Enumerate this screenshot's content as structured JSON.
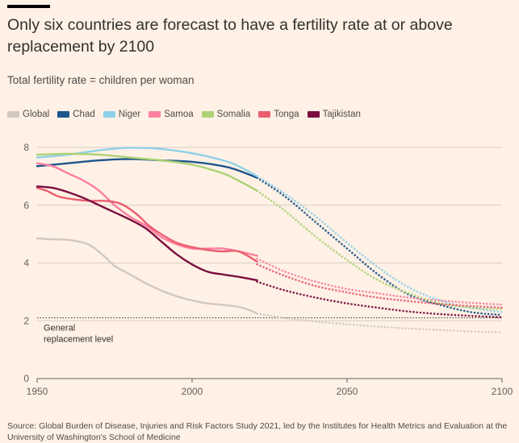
{
  "title": "Only six countries are forecast to have a fertility rate at or above replacement by 2100",
  "subtitle": "Total fertility rate = children per woman",
  "source": "Source: Global Burden of Disease, Injuries and Risk Factors Study 2021, led by the Institutes for Health Metrics and Evaluation at the University of Washington's School of Medicine",
  "chart_data": {
    "type": "line",
    "xlim": [
      1950,
      2100
    ],
    "ylim": [
      0,
      8
    ],
    "x_ticks": [
      1950,
      2000,
      2050,
      2100
    ],
    "y_ticks": [
      0,
      2,
      4,
      6,
      8
    ],
    "grid": true,
    "legend_placement": "top-left",
    "projection_start": 2021,
    "reference_line": {
      "value": 2.1,
      "label_line1": "General",
      "label_line2": "replacement level"
    },
    "series": [
      {
        "name": "Global",
        "color": "#d2c8c2",
        "points": [
          [
            1950,
            4.85
          ],
          [
            1955,
            4.82
          ],
          [
            1960,
            4.8
          ],
          [
            1965,
            4.7
          ],
          [
            1968,
            4.55
          ],
          [
            1972,
            4.2
          ],
          [
            1975,
            3.9
          ],
          [
            1980,
            3.6
          ],
          [
            1985,
            3.3
          ],
          [
            1990,
            3.05
          ],
          [
            1995,
            2.85
          ],
          [
            2000,
            2.7
          ],
          [
            2005,
            2.6
          ],
          [
            2010,
            2.55
          ],
          [
            2015,
            2.48
          ],
          [
            2019,
            2.35
          ],
          [
            2021,
            2.25
          ]
        ],
        "projection": [
          [
            2021,
            2.25
          ],
          [
            2030,
            2.1
          ],
          [
            2040,
            1.97
          ],
          [
            2050,
            1.88
          ],
          [
            2060,
            1.8
          ],
          [
            2070,
            1.73
          ],
          [
            2080,
            1.68
          ],
          [
            2090,
            1.63
          ],
          [
            2100,
            1.6
          ]
        ]
      },
      {
        "name": "Chad",
        "color": "#1e558c",
        "points": [
          [
            1950,
            7.35
          ],
          [
            1960,
            7.45
          ],
          [
            1970,
            7.55
          ],
          [
            1980,
            7.6
          ],
          [
            1990,
            7.55
          ],
          [
            2000,
            7.5
          ],
          [
            2010,
            7.35
          ],
          [
            2015,
            7.2
          ],
          [
            2021,
            6.95
          ]
        ],
        "projection": [
          [
            2021,
            6.95
          ],
          [
            2030,
            6.3
          ],
          [
            2040,
            5.4
          ],
          [
            2050,
            4.5
          ],
          [
            2060,
            3.6
          ],
          [
            2070,
            2.9
          ],
          [
            2080,
            2.55
          ],
          [
            2090,
            2.3
          ],
          [
            2100,
            2.2
          ]
        ]
      },
      {
        "name": "Niger",
        "color": "#8fd0e8",
        "points": [
          [
            1950,
            7.65
          ],
          [
            1960,
            7.75
          ],
          [
            1970,
            7.9
          ],
          [
            1978,
            7.98
          ],
          [
            1985,
            7.98
          ],
          [
            1990,
            7.95
          ],
          [
            2000,
            7.8
          ],
          [
            2010,
            7.55
          ],
          [
            2015,
            7.35
          ],
          [
            2021,
            7.0
          ]
        ],
        "projection": [
          [
            2021,
            7.0
          ],
          [
            2030,
            6.4
          ],
          [
            2040,
            5.6
          ],
          [
            2050,
            4.7
          ],
          [
            2060,
            3.85
          ],
          [
            2070,
            3.15
          ],
          [
            2080,
            2.7
          ],
          [
            2090,
            2.45
          ],
          [
            2100,
            2.3
          ]
        ]
      },
      {
        "name": "Samoa",
        "color": "#ff7fa0",
        "points": [
          [
            1950,
            7.45
          ],
          [
            1955,
            7.35
          ],
          [
            1960,
            7.1
          ],
          [
            1965,
            6.85
          ],
          [
            1970,
            6.5
          ],
          [
            1975,
            6.0
          ],
          [
            1980,
            5.6
          ],
          [
            1985,
            5.3
          ],
          [
            1990,
            4.9
          ],
          [
            1995,
            4.65
          ],
          [
            2000,
            4.5
          ],
          [
            2005,
            4.5
          ],
          [
            2010,
            4.5
          ],
          [
            2015,
            4.4
          ],
          [
            2021,
            4.25
          ]
        ],
        "projection": [
          [
            2021,
            4.15
          ],
          [
            2030,
            3.7
          ],
          [
            2040,
            3.35
          ],
          [
            2050,
            3.1
          ],
          [
            2060,
            2.95
          ],
          [
            2070,
            2.8
          ],
          [
            2080,
            2.7
          ],
          [
            2090,
            2.62
          ],
          [
            2100,
            2.56
          ]
        ]
      },
      {
        "name": "Somalia",
        "color": "#acd276",
        "points": [
          [
            1950,
            7.75
          ],
          [
            1960,
            7.78
          ],
          [
            1970,
            7.75
          ],
          [
            1980,
            7.65
          ],
          [
            1990,
            7.55
          ],
          [
            2000,
            7.4
          ],
          [
            2010,
            7.1
          ],
          [
            2015,
            6.85
          ],
          [
            2021,
            6.5
          ]
        ],
        "projection": [
          [
            2021,
            6.5
          ],
          [
            2030,
            5.8
          ],
          [
            2040,
            4.9
          ],
          [
            2050,
            4.1
          ],
          [
            2060,
            3.4
          ],
          [
            2070,
            2.95
          ],
          [
            2080,
            2.6
          ],
          [
            2090,
            2.45
          ],
          [
            2100,
            2.4
          ]
        ]
      },
      {
        "name": "Tonga",
        "color": "#eb5e6f",
        "points": [
          [
            1950,
            6.6
          ],
          [
            1953,
            6.5
          ],
          [
            1957,
            6.3
          ],
          [
            1962,
            6.2
          ],
          [
            1967,
            6.15
          ],
          [
            1972,
            6.15
          ],
          [
            1977,
            6.05
          ],
          [
            1982,
            5.7
          ],
          [
            1986,
            5.3
          ],
          [
            1990,
            5.0
          ],
          [
            1995,
            4.7
          ],
          [
            2000,
            4.55
          ],
          [
            2005,
            4.45
          ],
          [
            2010,
            4.4
          ],
          [
            2015,
            4.4
          ],
          [
            2021,
            4.05
          ]
        ],
        "projection": [
          [
            2021,
            3.95
          ],
          [
            2030,
            3.55
          ],
          [
            2040,
            3.2
          ],
          [
            2050,
            2.98
          ],
          [
            2060,
            2.8
          ],
          [
            2070,
            2.68
          ],
          [
            2080,
            2.58
          ],
          [
            2090,
            2.51
          ],
          [
            2100,
            2.45
          ]
        ]
      },
      {
        "name": "Tajikistan",
        "color": "#7a0f3f",
        "points": [
          [
            1950,
            6.65
          ],
          [
            1955,
            6.6
          ],
          [
            1960,
            6.45
          ],
          [
            1965,
            6.25
          ],
          [
            1970,
            6.0
          ],
          [
            1975,
            5.75
          ],
          [
            1980,
            5.5
          ],
          [
            1985,
            5.2
          ],
          [
            1990,
            4.75
          ],
          [
            1995,
            4.3
          ],
          [
            2000,
            3.95
          ],
          [
            2005,
            3.7
          ],
          [
            2010,
            3.6
          ],
          [
            2015,
            3.52
          ],
          [
            2021,
            3.4
          ]
        ],
        "projection": [
          [
            2021,
            3.35
          ],
          [
            2030,
            3.05
          ],
          [
            2040,
            2.8
          ],
          [
            2050,
            2.6
          ],
          [
            2060,
            2.45
          ],
          [
            2070,
            2.32
          ],
          [
            2080,
            2.23
          ],
          [
            2090,
            2.17
          ],
          [
            2100,
            2.12
          ]
        ]
      }
    ]
  }
}
